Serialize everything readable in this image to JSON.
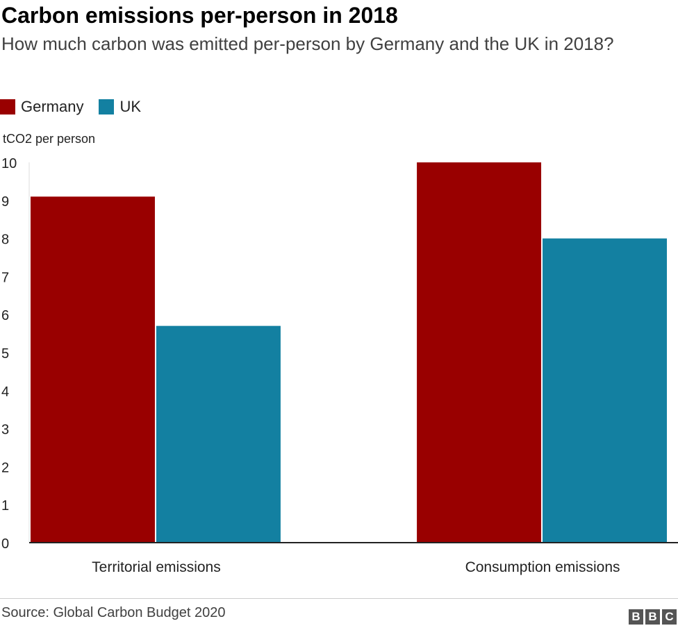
{
  "title": "Carbon emissions per-person in 2018",
  "subtitle": "How much carbon was emitted per-person by Germany and the UK in 2018?",
  "source": "Source: Global Carbon Budget 2020",
  "logo": [
    "B",
    "B",
    "C"
  ],
  "colors": {
    "germany": "#990000",
    "uk": "#1380A1",
    "axis": "#222222",
    "grid": "#dddddd"
  },
  "chart_data": {
    "type": "bar",
    "title": "Carbon emissions per-person in 2018",
    "ylabel": "tCO2 per person",
    "xlabel": "",
    "categories": [
      "Territorial emissions",
      "Consumption emissions"
    ],
    "series": [
      {
        "name": "Germany",
        "color": "#990000",
        "values": [
          9.1,
          10
        ]
      },
      {
        "name": "UK",
        "color": "#1380A1",
        "values": [
          5.7,
          8
        ]
      }
    ],
    "ylim": [
      0,
      10
    ],
    "yticks": [
      0,
      1,
      2,
      3,
      4,
      5,
      6,
      7,
      8,
      9,
      10
    ],
    "grid": false,
    "legend": "top-left"
  }
}
